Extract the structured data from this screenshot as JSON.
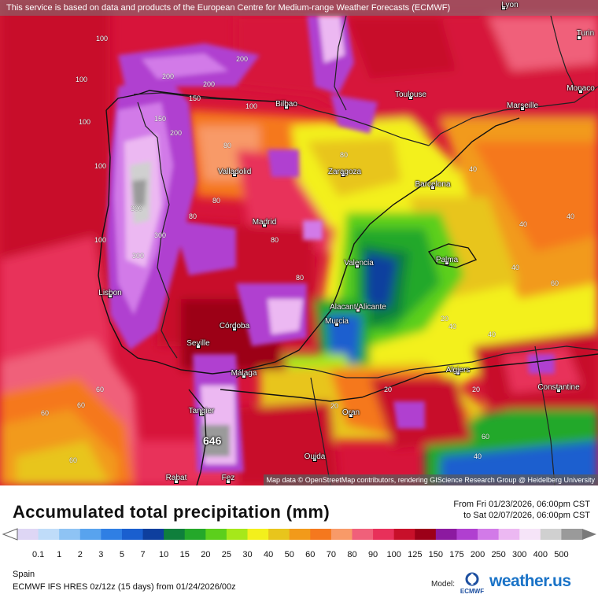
{
  "header": {
    "attribution": "This service is based on data and products of the European Centre for Medium-range Weather Forecasts (ECMWF)"
  },
  "map": {
    "attribution": "Map data © OpenStreetMap contributors, rendering GIScience Research Group @ Heidelberg University",
    "max_label": "646",
    "cities": [
      {
        "name": "Lyon"
      },
      {
        "name": "Turin"
      },
      {
        "name": "Monaco"
      },
      {
        "name": "Toulouse"
      },
      {
        "name": "Marseille"
      },
      {
        "name": "Bilbao"
      },
      {
        "name": "Valladolid"
      },
      {
        "name": "Zaragoza"
      },
      {
        "name": "Barcelona"
      },
      {
        "name": "Madrid"
      },
      {
        "name": "Valencia"
      },
      {
        "name": "Palma"
      },
      {
        "name": "Lisbon"
      },
      {
        "name": "Alacant/Alicante"
      },
      {
        "name": "Murcia"
      },
      {
        "name": "Córdoba"
      },
      {
        "name": "Seville"
      },
      {
        "name": "Málaga"
      },
      {
        "name": "Algiers"
      },
      {
        "name": "Constantine"
      },
      {
        "name": "Tangier"
      },
      {
        "name": "Oran"
      },
      {
        "name": "Oujda"
      },
      {
        "name": "Rabat"
      },
      {
        "name": "Fez"
      }
    ],
    "contour_labels": [
      "100",
      "100",
      "100",
      "100",
      "100",
      "200",
      "200",
      "200",
      "200",
      "150",
      "150",
      "300",
      "300",
      "300",
      "60",
      "60",
      "60",
      "60",
      "60",
      "40",
      "40",
      "40",
      "40",
      "40",
      "40",
      "80",
      "80",
      "80",
      "80",
      "80",
      "20",
      "20",
      "20",
      "100",
      "40",
      "60",
      "80",
      "20"
    ]
  },
  "title": "Accumulated total precipitation (mm)",
  "date_range": {
    "from": "From Fri 01/23/2026, 06:00pm CST",
    "to": "to Sat 02/07/2026, 06:00pm CST"
  },
  "legend": {
    "ticks": [
      "0.1",
      "1",
      "2",
      "3",
      "5",
      "7",
      "10",
      "15",
      "20",
      "25",
      "30",
      "40",
      "50",
      "60",
      "70",
      "80",
      "90",
      "100",
      "125",
      "150",
      "175",
      "200",
      "250",
      "300",
      "400",
      "500"
    ],
    "colors": [
      "#ded6f5",
      "#bfdcf9",
      "#8ec3f4",
      "#58a3ee",
      "#2f7fe4",
      "#1a5fcf",
      "#0e3f9e",
      "#0f7f3c",
      "#24a82a",
      "#5ccf1c",
      "#a6e81a",
      "#f3f01c",
      "#e8c51c",
      "#f29a1a",
      "#f5781e",
      "#f89a68",
      "#f0607a",
      "#e8305a",
      "#c8102a",
      "#9c0018",
      "#8c1aa0",
      "#b03fd0",
      "#d27ae8",
      "#ecb8f2",
      "#f6e4f8",
      "#d0d0d0",
      "#9a9a9a"
    ]
  },
  "footer": {
    "region": "Spain",
    "model": "ECMWF IFS HRES 0z/12z (15 days) from 01/24/2026/00z",
    "model_label": "Model:",
    "ecmwf_logo_text": "ECMWF",
    "brand": "weather.us"
  }
}
